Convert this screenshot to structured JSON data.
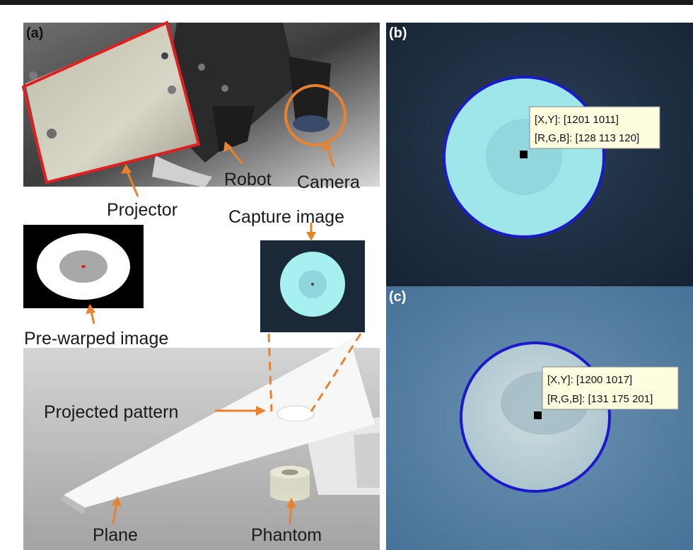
{
  "panels": {
    "a": "(a)",
    "b": "(b)",
    "c": "(c)"
  },
  "labels": {
    "projector": "Projector",
    "robot": "Robot",
    "camera": "Camera",
    "capture_image": "Capture image",
    "pre_warped_image": "Pre-warped image",
    "projected_pattern": "Projected pattern",
    "plane": "Plane",
    "phantom": "Phantom"
  },
  "tooltip_b": {
    "xy": "[X,Y]: [1201 1011]",
    "rgb": "[R,G,B]: [128 113 120]"
  },
  "tooltip_c": {
    "xy": "[X,Y]: [1200 1017]",
    "rgb": "[R,G,B]: [131 175 201]"
  },
  "colors": {
    "annotation_orange": "#e8822e",
    "projector_outline": "#e02020",
    "circle_outline": "#1a1acc"
  }
}
